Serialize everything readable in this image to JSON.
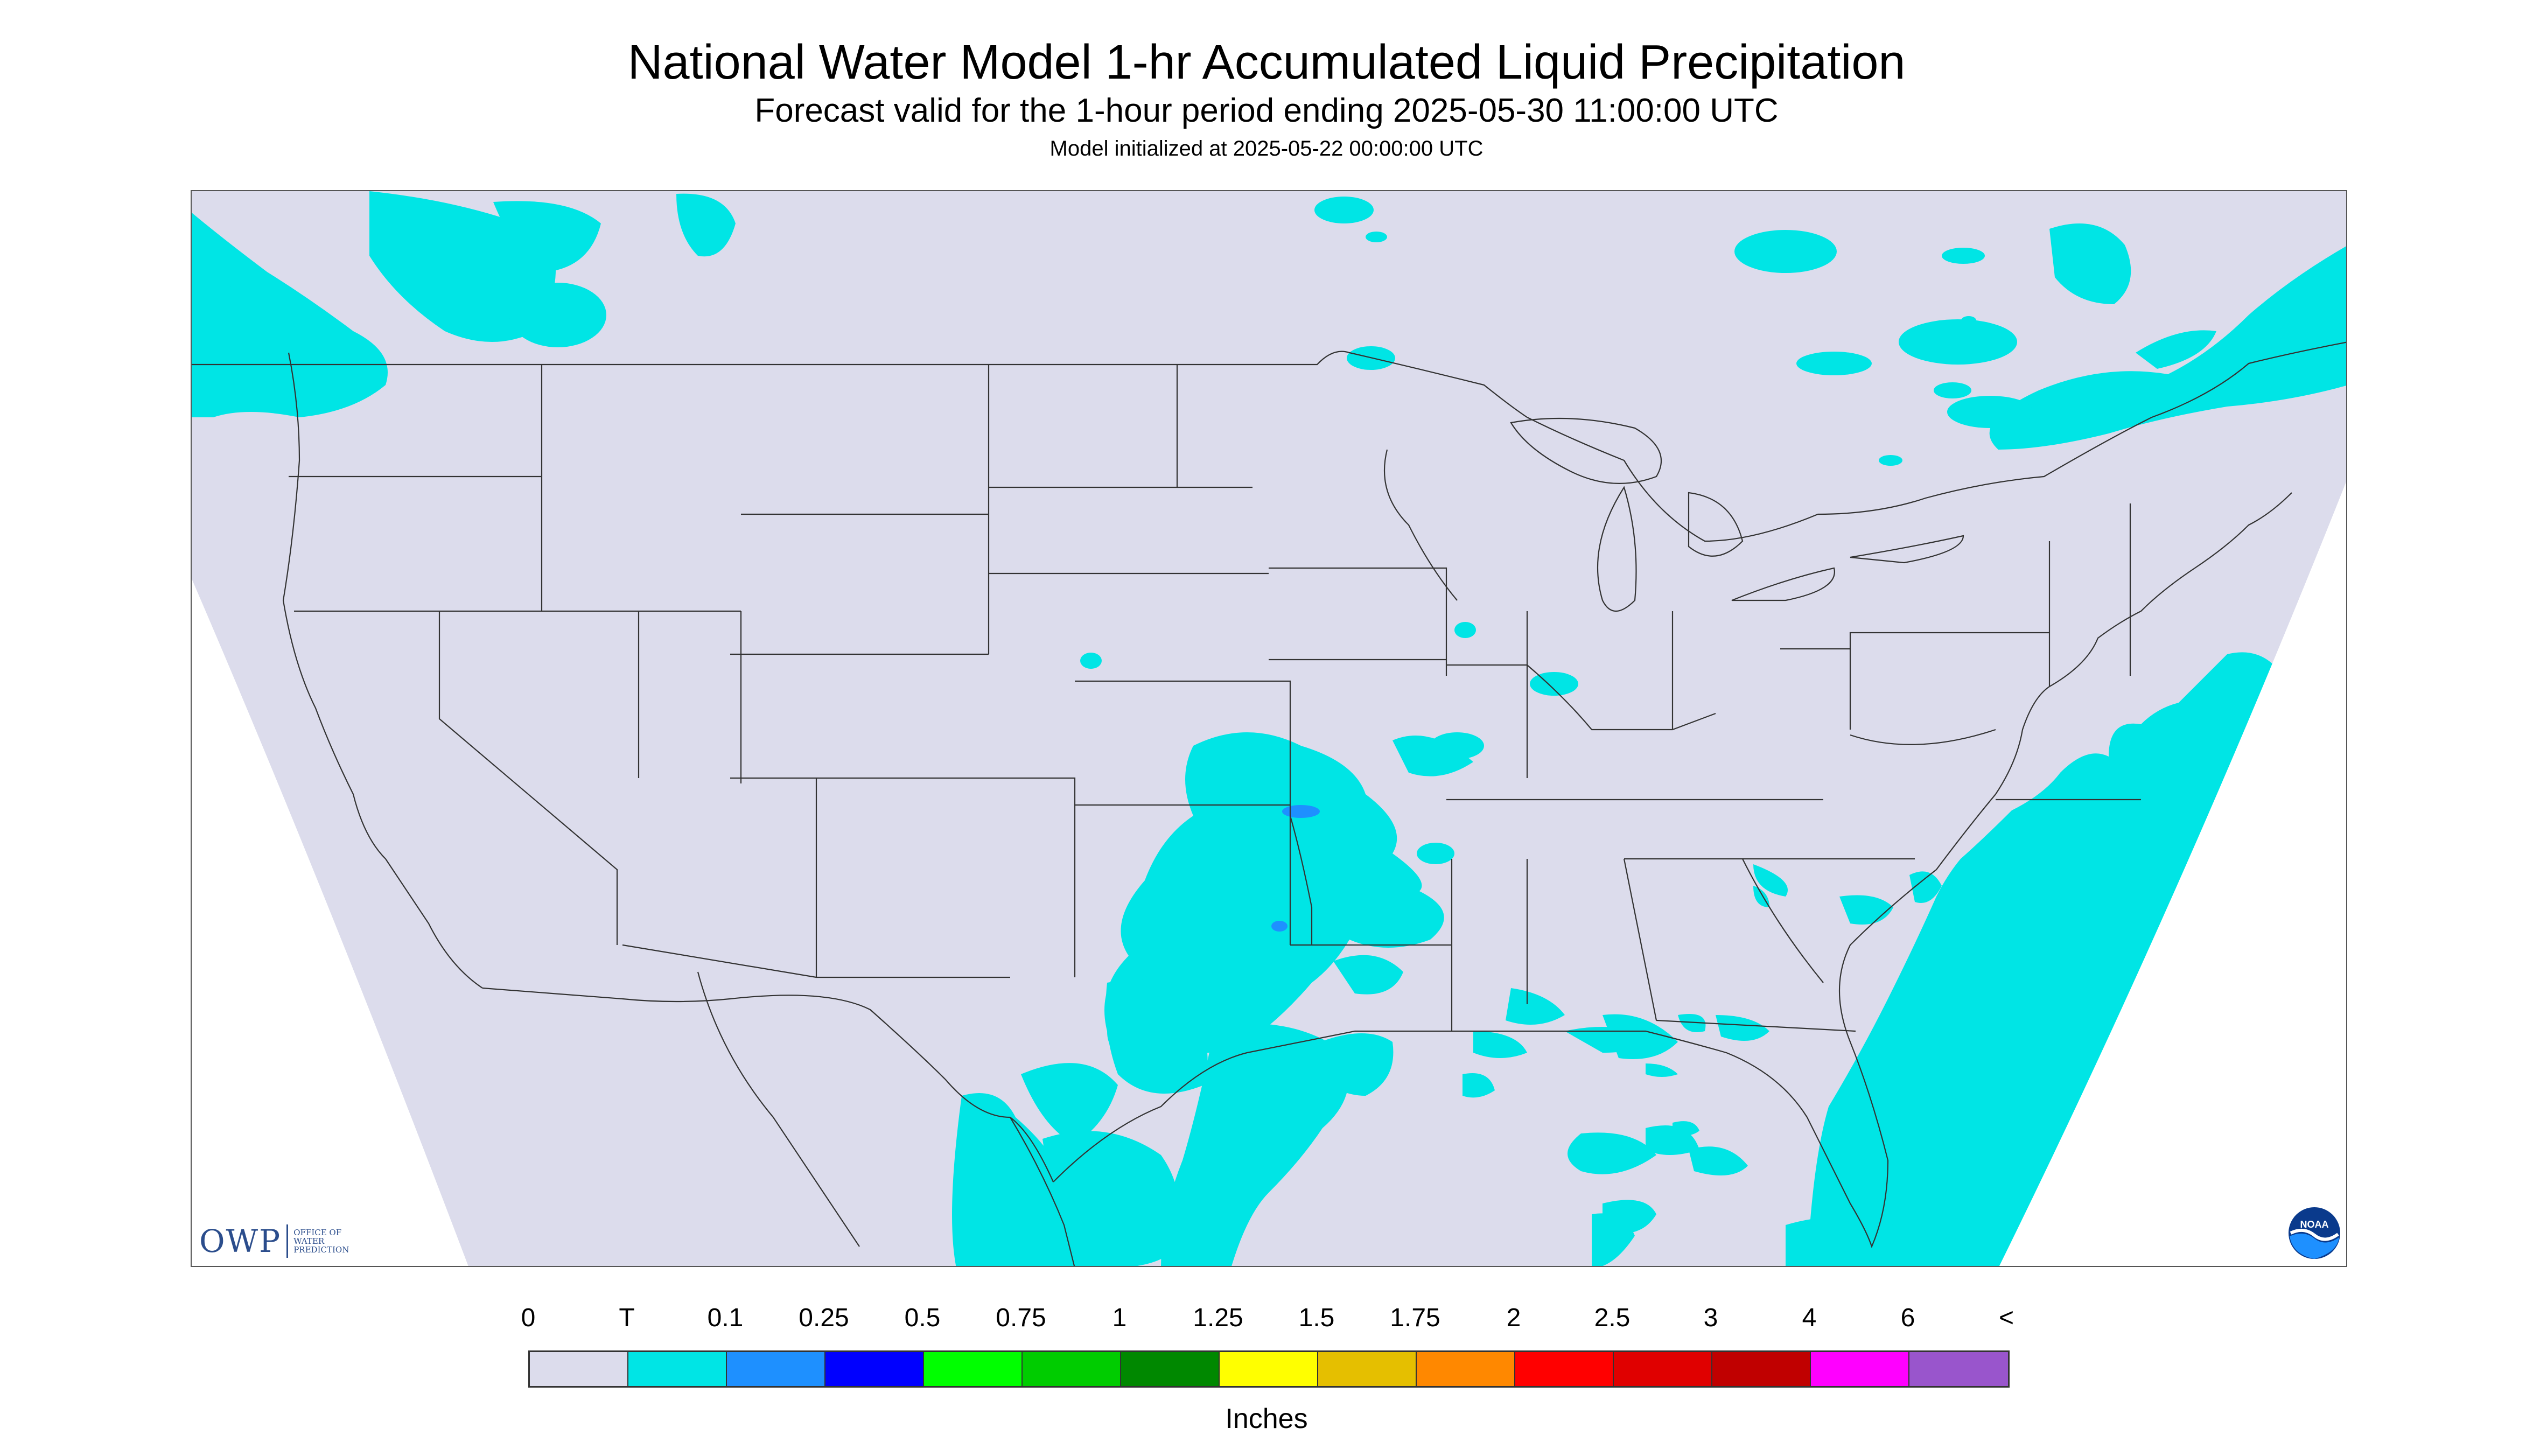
{
  "header": {
    "title": "National Water Model 1-hr Accumulated Liquid Precipitation",
    "subtitle": "Forecast valid for the 1-hour period ending 2025-05-30 11:00:00 UTC",
    "init": "Model initialized at 2025-05-22 00:00:00 UTC"
  },
  "map": {
    "projection_fill": "#dcdcec",
    "outside_fill": "#ffffff",
    "boundary_color": "#333333",
    "precip_colors": {
      "trace": "#00e5e5",
      "light": "#1e90ff"
    }
  },
  "logos": {
    "owp": {
      "mark": "OWP",
      "line1": "OFFICE OF",
      "line2": "WATER",
      "line3": "PREDICTION"
    },
    "noaa": {
      "mark": "NOAA"
    }
  },
  "legend": {
    "units": "Inches",
    "ticks": [
      "0",
      "T",
      "0.1",
      "0.25",
      "0.5",
      "0.75",
      "1",
      "1.25",
      "1.5",
      "1.75",
      "2",
      "2.5",
      "3",
      "4",
      "6",
      "<"
    ],
    "colors": [
      "#dcdcec",
      "#00e5e5",
      "#1e90ff",
      "#0000ff",
      "#00ff00",
      "#00cc00",
      "#008800",
      "#ffff00",
      "#e5bf00",
      "#ff8800",
      "#ff0000",
      "#e00000",
      "#c00000",
      "#ff00ff",
      "#9955cc"
    ]
  }
}
